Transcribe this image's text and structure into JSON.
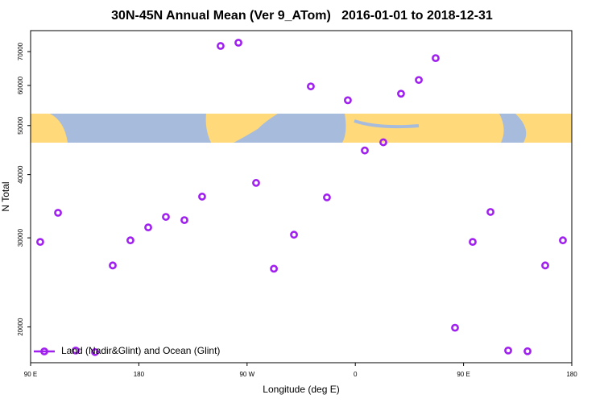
{
  "chart_data": {
    "type": "scatter",
    "title": "30N-45N Annual Mean (Ver 9_ATom)   2016-01-01 to 2018-12-31",
    "x_label": "Longitude (deg E)",
    "y_label": "N Total",
    "series": [
      {
        "name": "Land (Nadir&Glint) and Ocean (Glint)",
        "color": "#a020f0",
        "x": [
          98,
          112.8,
          127.5,
          143.6,
          158.3,
          173,
          187.8,
          202.5,
          217.9,
          232.6,
          248,
          262.8,
          277.5,
          292.3,
          309,
          323,
          336.4,
          353.8,
          367.9,
          383.3,
          398,
          412.8,
          426.8,
          442.9,
          457.6,
          472.4,
          487.1,
          503.2,
          517.9,
          532.6
        ],
        "values": [
          29450,
          33620,
          17970,
          17840,
          26460,
          29660,
          31460,
          33000,
          32520,
          36190,
          71810,
          72880,
          38520,
          26070,
          30430,
          59740,
          36060,
          56100,
          44640,
          46330,
          57800,
          61520,
          67950,
          19930,
          29450,
          33750,
          17970,
          17910,
          26460,
          29660
        ]
      }
    ],
    "xlim": [
      90,
      540
    ],
    "xticks": [
      {
        "value": 90,
        "label": "90 E"
      },
      180,
      {
        "value": 270,
        "label": "90 W"
      },
      {
        "value": 360,
        "label": "0"
      },
      {
        "value": 450,
        "label": "90 E"
      },
      {
        "value": 540,
        "label": "180"
      }
    ],
    "ylim": [
      17000,
      77000
    ],
    "yticks": [
      20000,
      30000,
      40000,
      50000,
      60000,
      70000
    ],
    "log_y": true,
    "legend": "bottom-left"
  }
}
